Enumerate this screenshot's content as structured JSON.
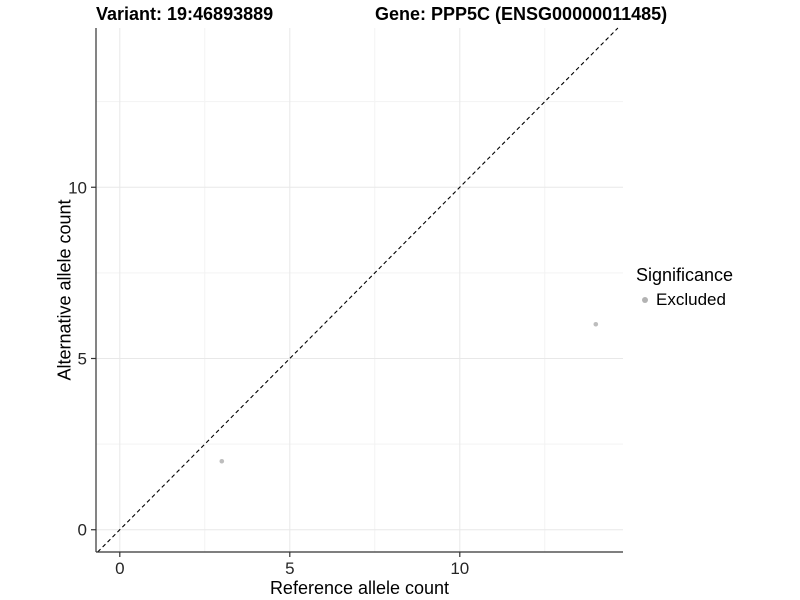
{
  "chart_data": {
    "type": "scatter",
    "titles": [
      "Variant: 19:46893889",
      "Gene: PPP5C (ENSG00000011485)"
    ],
    "xlabel": "Reference allele count",
    "ylabel": "Alternative allele count",
    "xlim": [
      -0.7,
      14.8
    ],
    "ylim": [
      -0.65,
      14.65
    ],
    "x_ticks": [
      0,
      5,
      10
    ],
    "y_ticks": [
      0,
      5,
      10
    ],
    "x_minor_ticks": [
      2.5,
      7.5,
      12.5
    ],
    "y_minor_ticks": [
      2.5,
      7.5,
      12.5
    ],
    "grid": true,
    "legend_position": "right",
    "legend_title": "Significance",
    "series": [
      {
        "name": "Excluded",
        "color": "#bdbdbd",
        "points": [
          {
            "x": 3,
            "y": 2
          },
          {
            "x": 14,
            "y": 6
          }
        ]
      }
    ],
    "reference_line": {
      "type": "identity",
      "slope": 1,
      "intercept": 0,
      "style": "dashed",
      "color": "#000000"
    }
  },
  "colors": {
    "background": "#ffffff",
    "grid_major": "#e8e8e8",
    "grid_minor": "#f3f3f3",
    "axis_line": "#333333",
    "tick_mark": "#333333",
    "tick_text": "#262626",
    "legend_key": "#b3b3b3"
  }
}
